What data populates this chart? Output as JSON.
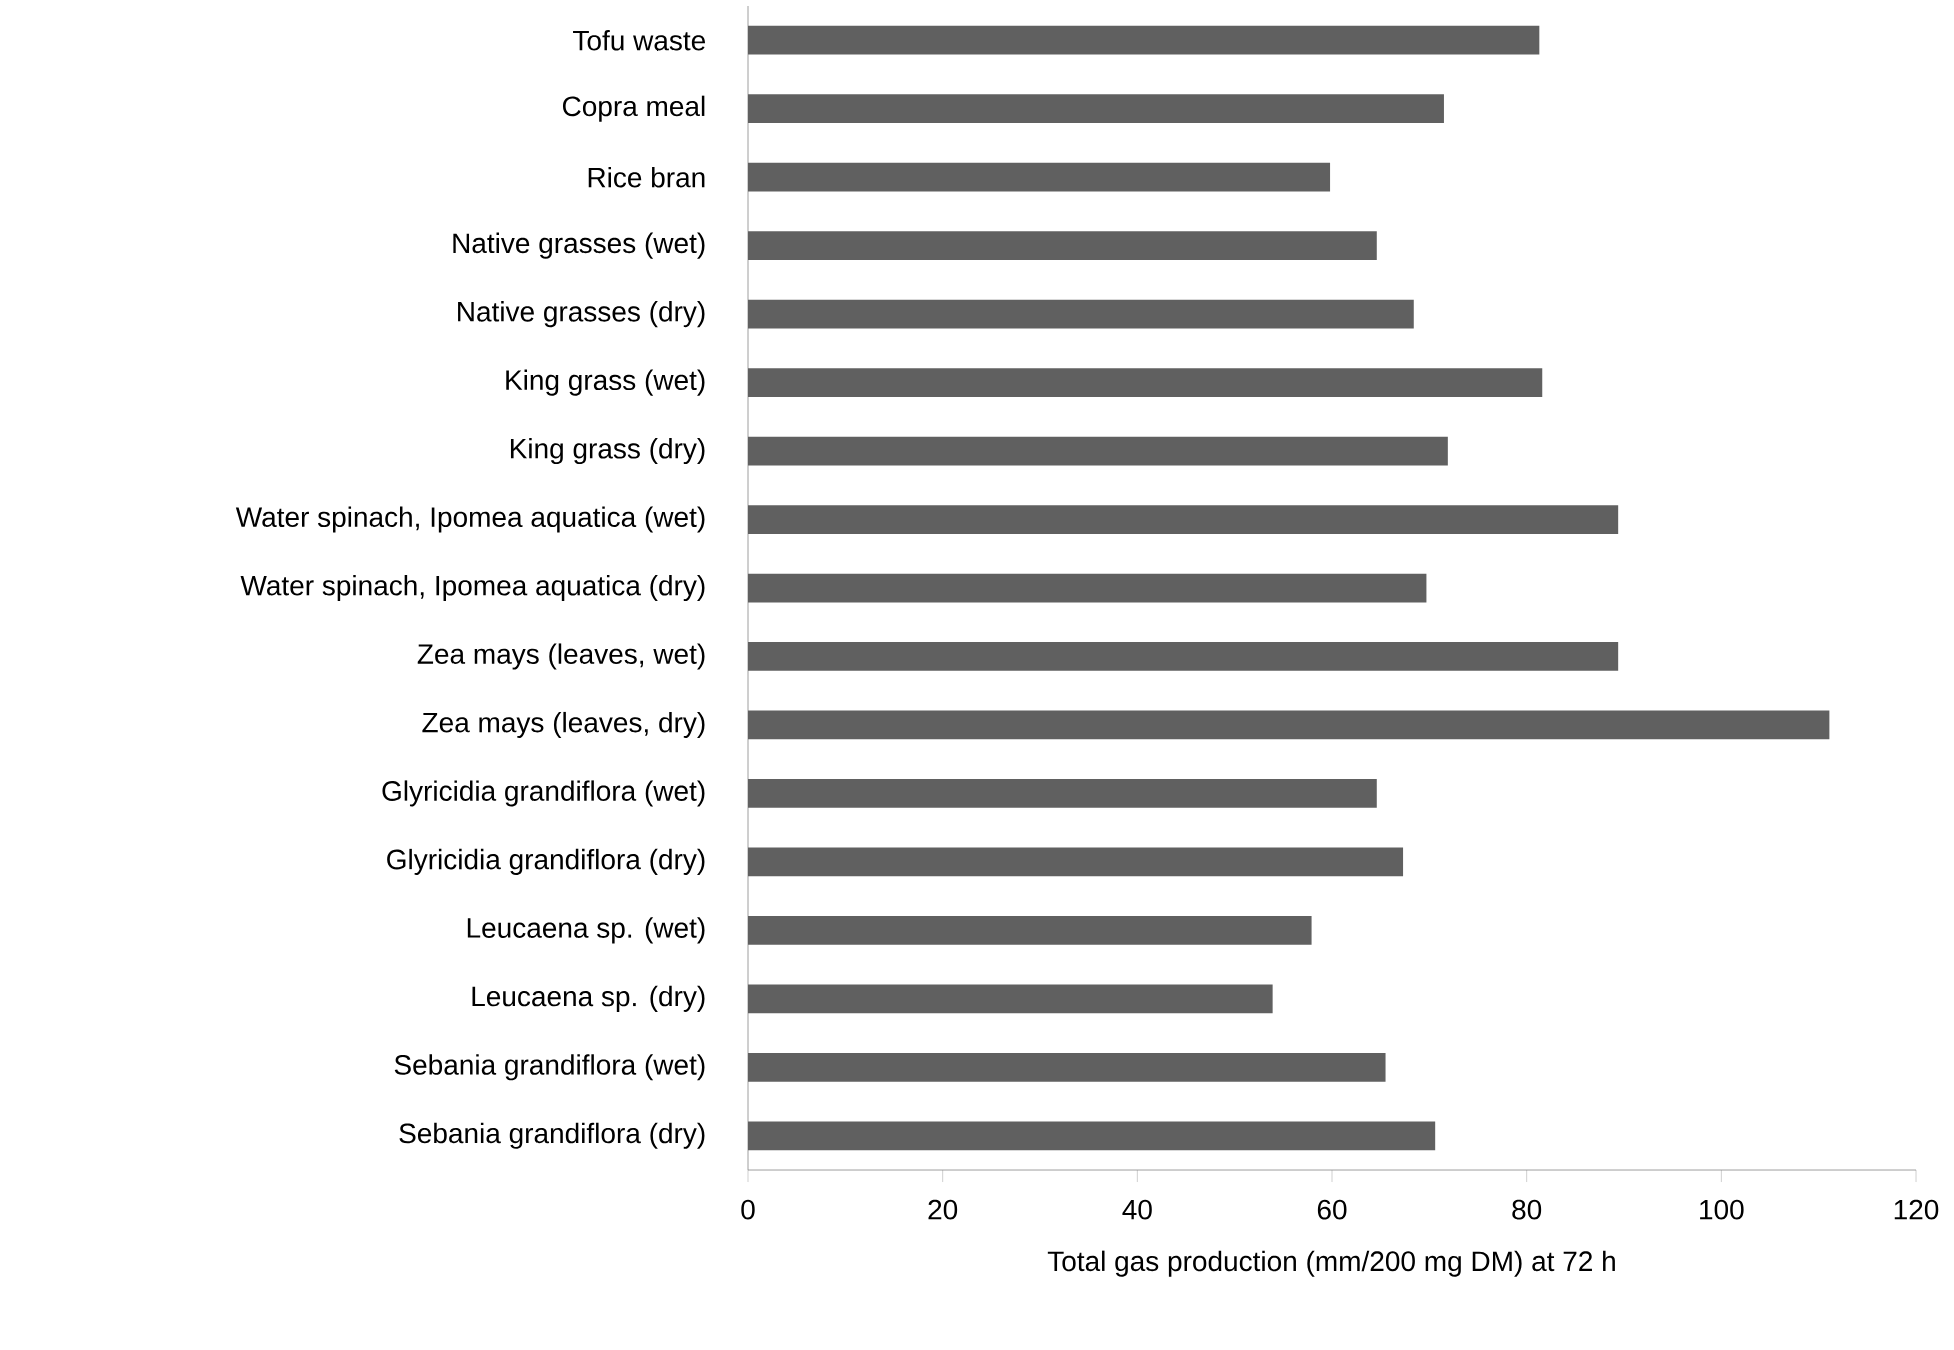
{
  "chart_data": {
    "type": "bar",
    "orientation": "horizontal",
    "categories": [
      "Tofu waste",
      "Copra meal",
      "Rice bran",
      "Native grasses (wet)",
      "Native grasses (dry)",
      "King grass (wet)",
      "King grass (dry)",
      "Water spinach, Ipomea aquatica (wet)",
      "Water spinach, Ipomea aquatica (dry)",
      "Zea mays (leaves, wet)",
      "Zea mays (leaves, dry)",
      "Glyricidia grandiflora (wet)",
      "Glyricidia grandiflora (dry)",
      "Leucaena sp. (wet)",
      "Leucaena sp. (dry)",
      "Sebania grandiflora (wet)",
      "Sebania grandiflora (dry)"
    ],
    "values": [
      81.3,
      71.5,
      59.8,
      64.6,
      68.4,
      81.6,
      71.9,
      89.4,
      69.7,
      89.4,
      111.1,
      64.6,
      67.3,
      57.9,
      53.9,
      65.5,
      70.6
    ],
    "color": "#606060",
    "xlabel": "Total gas production (mm/200 mg DM) at 72 h",
    "xlim": [
      0,
      120
    ],
    "xticks": [
      0,
      20,
      40,
      60,
      80,
      100,
      120
    ]
  }
}
